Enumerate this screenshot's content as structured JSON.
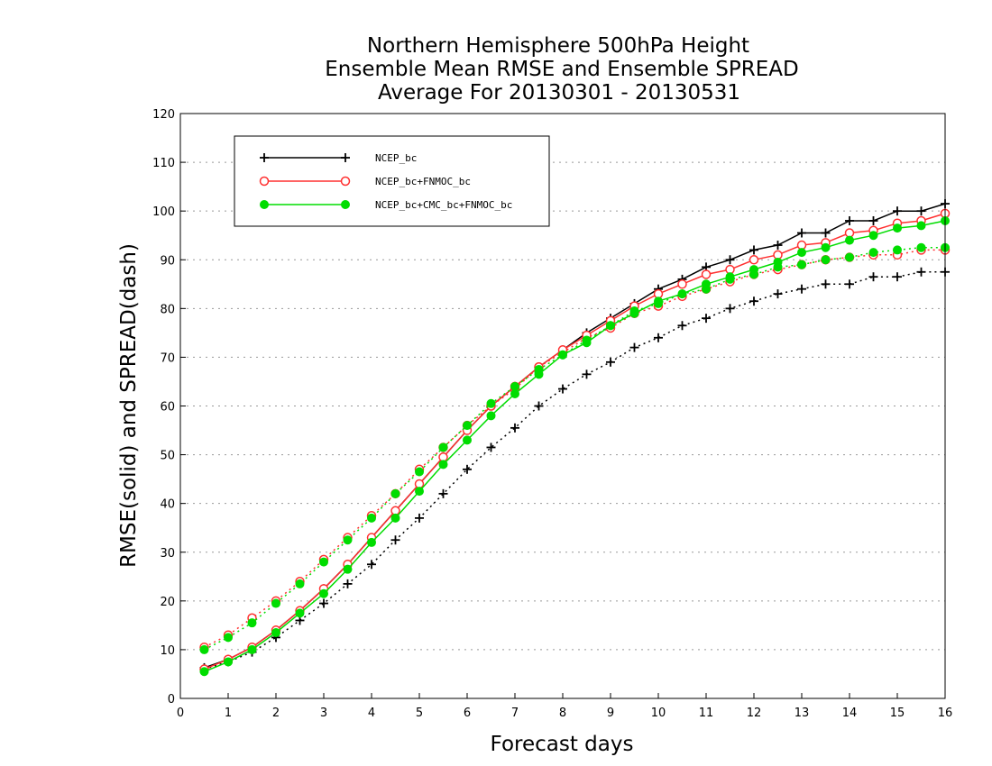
{
  "chart_data": {
    "type": "line",
    "title_lines": [
      "Northern Hemisphere 500hPa Height",
      "Ensemble Mean RMSE and Ensemble SPREAD",
      "Average For 20130301 - 20130531"
    ],
    "xlabel": "Forecast days",
    "ylabel": "RMSE(solid) and SPREAD(dash)",
    "xlim": [
      0,
      16
    ],
    "ylim": [
      0,
      120
    ],
    "xticks": [
      0,
      1,
      2,
      3,
      4,
      5,
      6,
      7,
      8,
      9,
      10,
      11,
      12,
      13,
      14,
      15,
      16
    ],
    "yticks": [
      0,
      10,
      20,
      30,
      40,
      50,
      60,
      70,
      80,
      90,
      100,
      110,
      120
    ],
    "grid": "horizontal dotted",
    "legend_position": "top-left",
    "x": [
      0.5,
      1,
      1.5,
      2,
      2.5,
      3,
      3.5,
      4,
      4.5,
      5,
      5.5,
      6,
      6.5,
      7,
      7.5,
      8,
      8.5,
      9,
      9.5,
      10,
      10.5,
      11,
      11.5,
      12,
      12.5,
      13,
      13.5,
      14,
      14.5,
      15,
      15.5,
      16
    ],
    "series": [
      {
        "name": "NCEP_bc",
        "color": "#000000",
        "marker": "plus",
        "rmse": [
          6.3,
          8.0,
          10.5,
          14.0,
          18.0,
          22.5,
          27.5,
          33.0,
          38.5,
          44.0,
          49.5,
          55.0,
          60.0,
          64.0,
          68.0,
          71.5,
          75.0,
          78.0,
          81.0,
          84.0,
          86.0,
          88.5,
          90.0,
          92.0,
          93.0,
          95.5,
          95.5,
          98.0,
          98.0,
          100.0,
          100.0,
          101.5
        ],
        "spread": [
          6.0,
          7.5,
          9.5,
          12.5,
          16.0,
          19.5,
          23.5,
          27.5,
          32.5,
          37.0,
          42.0,
          47.0,
          51.5,
          55.5,
          60.0,
          63.5,
          66.5,
          69.0,
          72.0,
          74.0,
          76.5,
          78.0,
          80.0,
          81.5,
          83.0,
          84.0,
          85.0,
          85.0,
          86.5,
          86.5,
          87.5,
          87.5
        ]
      },
      {
        "name": "NCEP_bc+FNMOC_bc",
        "color": "#ff3030",
        "marker": "open-circle",
        "rmse": [
          6.0,
          8.0,
          10.5,
          14.0,
          18.0,
          22.5,
          27.5,
          33.0,
          38.5,
          44.0,
          49.5,
          55.0,
          60.0,
          64.0,
          68.0,
          71.5,
          74.5,
          77.5,
          80.5,
          83.0,
          85.0,
          87.0,
          88.0,
          90.0,
          91.0,
          93.0,
          93.5,
          95.5,
          96.0,
          97.5,
          98.0,
          99.5
        ],
        "spread": [
          10.5,
          13.0,
          16.5,
          20.0,
          24.0,
          28.5,
          33.0,
          37.5,
          42.0,
          47.0,
          51.5,
          56.0,
          60.0,
          63.5,
          68.0,
          71.0,
          74.0,
          76.0,
          79.0,
          80.5,
          82.5,
          84.0,
          85.5,
          87.0,
          88.0,
          89.0,
          90.0,
          90.5,
          91.0,
          91.0,
          92.0,
          92.0
        ]
      },
      {
        "name": "NCEP_bc+CMC_bc+FNMOC_bc",
        "color": "#00dd00",
        "marker": "filled-circle",
        "rmse": [
          5.5,
          7.5,
          10.0,
          13.5,
          17.5,
          21.5,
          26.5,
          32.0,
          37.0,
          42.5,
          48.0,
          53.0,
          58.0,
          62.5,
          66.5,
          70.5,
          73.0,
          76.5,
          79.0,
          81.5,
          83.0,
          85.0,
          86.5,
          88.0,
          89.5,
          91.5,
          92.5,
          94.0,
          95.0,
          96.5,
          97.0,
          98.0
        ],
        "spread": [
          10.0,
          12.5,
          15.5,
          19.5,
          23.5,
          28.0,
          32.5,
          37.0,
          42.0,
          46.5,
          51.5,
          56.0,
          60.5,
          64.0,
          67.5,
          70.5,
          73.5,
          76.5,
          79.5,
          81.0,
          83.0,
          84.0,
          86.0,
          87.0,
          88.5,
          89.0,
          90.0,
          90.5,
          91.5,
          92.0,
          92.5,
          92.5
        ]
      }
    ]
  }
}
